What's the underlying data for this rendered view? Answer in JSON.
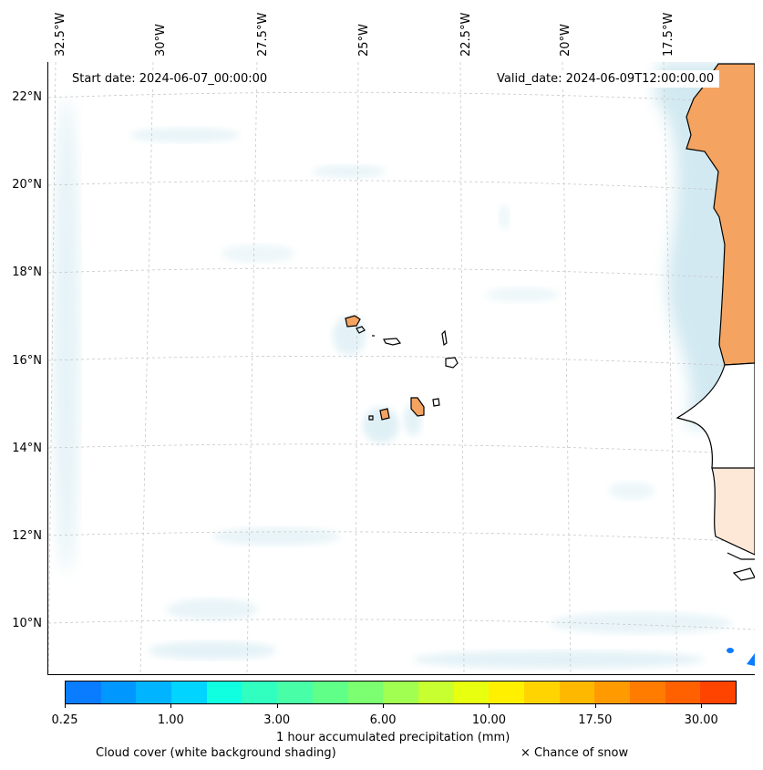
{
  "map": {
    "start_date": "Start date: 2024-06-07_00:00:00",
    "valid_date": "Valid_date: 2024-06-09T12:00:00.00",
    "lon_labels": [
      "32.5°W",
      "30°W",
      "27.5°W",
      "25°W",
      "22.5°W",
      "20°W",
      "17.5°W"
    ],
    "lat_labels": [
      "22°N",
      "20°N",
      "18°N",
      "16°N",
      "14°N",
      "12°N",
      "10°N"
    ],
    "colors": {
      "land_warm": "#f4a460",
      "cloud": "#add8e6",
      "coast": "#000000",
      "grid": "#c8c8c8"
    }
  },
  "colorbar": {
    "colors": [
      "#0a7cff",
      "#0098ff",
      "#00b4ff",
      "#00d4ff",
      "#10ffe0",
      "#30ffc0",
      "#48ffa8",
      "#60ff88",
      "#7cff70",
      "#a0ff50",
      "#c8ff30",
      "#e8ff10",
      "#fff000",
      "#ffd400",
      "#ffb800",
      "#ff9a00",
      "#ff7c00",
      "#ff6000",
      "#ff4400"
    ],
    "tick_labels": [
      "0.25",
      "1.00",
      "3.00",
      "6.00",
      "10.00",
      "17.50",
      "30.00"
    ],
    "label": "1 hour accumulated precipitation (mm)"
  },
  "legend": {
    "cloud_cover": "Cloud cover (white background shading)",
    "snow": "× Chance of snow"
  }
}
